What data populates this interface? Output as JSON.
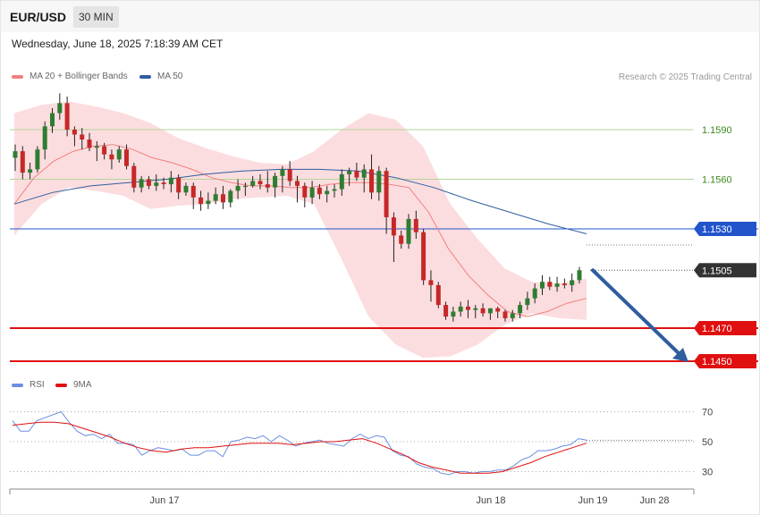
{
  "header": {
    "symbol": "EUR/USD",
    "timeframe": "30 MIN",
    "datetime": "Wednesday, June 18, 2025 7:18:39 AM CET"
  },
  "legend": {
    "ma20_label": "MA 20 + Bollinger Bands",
    "ma50_label": "MA 50",
    "rsi_label": "RSI",
    "rsi_ma_label": "9MA",
    "credit": "Research © 2025 Trading Central"
  },
  "colors": {
    "ma20": "#f08080",
    "ma50": "#2f5d9e",
    "band_fill": "#fcd9dc",
    "bull": "#2e7d32",
    "bear": "#c62828",
    "level_green": "#b3d49a",
    "level_blue": "#2255cc",
    "level_red": "#e01010",
    "rsi": "#6b8ee0",
    "rsi_ma": "#e01010",
    "arrow": "#2f5d9e"
  },
  "chart_data": [
    {
      "type": "candlestick",
      "title": "EUR/USD",
      "timeframe": "30 MIN",
      "y_range": [
        1.144,
        1.161
      ],
      "x_labels": [
        "Jun 17",
        "Jun 18",
        "Jun 19",
        "Jun 28"
      ],
      "levels": [
        {
          "value": 1.159,
          "label": "1.1590",
          "kind": "resistance"
        },
        {
          "value": 1.156,
          "label": "1.1560",
          "kind": "resistance"
        },
        {
          "value": 1.153,
          "label": "1.1530",
          "kind": "pivot"
        },
        {
          "value": 1.1505,
          "label": "1.1505",
          "kind": "last"
        },
        {
          "value": 1.147,
          "label": "1.1470",
          "kind": "support"
        },
        {
          "value": 1.145,
          "label": "1.1450",
          "kind": "support"
        }
      ],
      "candles": [
        [
          1.1573,
          1.1581,
          1.1565,
          1.1577
        ],
        [
          1.1577,
          1.158,
          1.156,
          1.1564
        ],
        [
          1.1564,
          1.157,
          1.156,
          1.1566
        ],
        [
          1.1566,
          1.158,
          1.1564,
          1.1578
        ],
        [
          1.1578,
          1.1595,
          1.1572,
          1.1592
        ],
        [
          1.1592,
          1.1603,
          1.1588,
          1.16
        ],
        [
          1.16,
          1.1612,
          1.1596,
          1.1606
        ],
        [
          1.1606,
          1.161,
          1.1586,
          1.159
        ],
        [
          1.159,
          1.1592,
          1.158,
          1.1587
        ],
        [
          1.1587,
          1.1591,
          1.1578,
          1.1584
        ],
        [
          1.1584,
          1.1588,
          1.1577,
          1.1579
        ],
        [
          1.1579,
          1.1583,
          1.1571,
          1.158
        ],
        [
          1.158,
          1.1582,
          1.1572,
          1.1575
        ],
        [
          1.1575,
          1.1578,
          1.1566,
          1.1572
        ],
        [
          1.1572,
          1.158,
          1.157,
          1.1578
        ],
        [
          1.1578,
          1.1581,
          1.1566,
          1.1568
        ],
        [
          1.1568,
          1.157,
          1.1552,
          1.1555
        ],
        [
          1.1555,
          1.1562,
          1.1552,
          1.156
        ],
        [
          1.156,
          1.1562,
          1.1554,
          1.1556
        ],
        [
          1.1556,
          1.1563,
          1.1553,
          1.1558
        ],
        [
          1.1558,
          1.1561,
          1.1554,
          1.1557
        ],
        [
          1.1557,
          1.1565,
          1.1552,
          1.1561
        ],
        [
          1.1561,
          1.1563,
          1.1548,
          1.1552
        ],
        [
          1.1552,
          1.1558,
          1.155,
          1.1556
        ],
        [
          1.1556,
          1.1558,
          1.1542,
          1.1549
        ],
        [
          1.1549,
          1.1553,
          1.1541,
          1.1545
        ],
        [
          1.1545,
          1.1552,
          1.1542,
          1.1547
        ],
        [
          1.1547,
          1.1555,
          1.1545,
          1.1551
        ],
        [
          1.1551,
          1.1556,
          1.1542,
          1.1546
        ],
        [
          1.1546,
          1.1554,
          1.1543,
          1.1553
        ],
        [
          1.1553,
          1.156,
          1.1548,
          1.1556
        ],
        [
          1.1556,
          1.1558,
          1.155,
          1.1556
        ],
        [
          1.1556,
          1.1562,
          1.1555,
          1.1559
        ],
        [
          1.1559,
          1.1563,
          1.1554,
          1.1557
        ],
        [
          1.1557,
          1.1565,
          1.1552,
          1.1555
        ],
        [
          1.1555,
          1.1564,
          1.1549,
          1.1562
        ],
        [
          1.1562,
          1.1568,
          1.1552,
          1.1566
        ],
        [
          1.1566,
          1.1571,
          1.1556,
          1.1559
        ],
        [
          1.1559,
          1.1562,
          1.1546,
          1.1556
        ],
        [
          1.1556,
          1.1558,
          1.1543,
          1.1549
        ],
        [
          1.1549,
          1.1559,
          1.1545,
          1.1555
        ],
        [
          1.1555,
          1.1557,
          1.1548,
          1.1551
        ],
        [
          1.1551,
          1.1556,
          1.1546,
          1.1553
        ],
        [
          1.1553,
          1.1557,
          1.1549,
          1.1554
        ],
        [
          1.1554,
          1.1566,
          1.155,
          1.1563
        ],
        [
          1.1563,
          1.1567,
          1.1556,
          1.1565
        ],
        [
          1.1565,
          1.157,
          1.1559,
          1.1561
        ],
        [
          1.1561,
          1.1569,
          1.1552,
          1.1566
        ],
        [
          1.1566,
          1.1575,
          1.1548,
          1.1552
        ],
        [
          1.1552,
          1.1568,
          1.1547,
          1.1565
        ],
        [
          1.1565,
          1.1567,
          1.1527,
          1.1537
        ],
        [
          1.1537,
          1.154,
          1.151,
          1.1526
        ],
        [
          1.1526,
          1.1529,
          1.1518,
          1.1521
        ],
        [
          1.1521,
          1.1539,
          1.1518,
          1.1536
        ],
        [
          1.1536,
          1.1541,
          1.1524,
          1.1528
        ],
        [
          1.1528,
          1.153,
          1.1496,
          1.1499
        ],
        [
          1.1499,
          1.1505,
          1.1486,
          1.1496
        ],
        [
          1.1496,
          1.1498,
          1.1482,
          1.1484
        ],
        [
          1.1484,
          1.1486,
          1.1475,
          1.1477
        ],
        [
          1.1477,
          1.1483,
          1.1474,
          1.148
        ],
        [
          1.148,
          1.1486,
          1.1477,
          1.1483
        ],
        [
          1.1483,
          1.1487,
          1.1476,
          1.1481
        ],
        [
          1.1481,
          1.1484,
          1.1476,
          1.1482
        ],
        [
          1.1482,
          1.1485,
          1.1477,
          1.1479
        ],
        [
          1.1479,
          1.1482,
          1.1475,
          1.1482
        ],
        [
          1.1482,
          1.1483,
          1.1476,
          1.148
        ],
        [
          1.148,
          1.1481,
          1.1474,
          1.1476
        ],
        [
          1.1476,
          1.1481,
          1.1474,
          1.1479
        ],
        [
          1.1479,
          1.1486,
          1.1476,
          1.1484
        ],
        [
          1.1484,
          1.1492,
          1.1481,
          1.1488
        ],
        [
          1.1488,
          1.1497,
          1.1485,
          1.1494
        ],
        [
          1.1494,
          1.1502,
          1.149,
          1.1498
        ],
        [
          1.1498,
          1.1501,
          1.1493,
          1.1495
        ],
        [
          1.1495,
          1.1501,
          1.1492,
          1.1497
        ],
        [
          1.1497,
          1.15,
          1.1494,
          1.1496
        ],
        [
          1.1496,
          1.1503,
          1.1492,
          1.1499
        ],
        [
          1.1499,
          1.1507,
          1.1497,
          1.1505
        ]
      ],
      "ma20": [
        1.1545,
        1.1561,
        1.1571,
        1.1577,
        1.158,
        1.1581,
        1.1578,
        1.1573,
        1.157,
        1.1566,
        1.1561,
        1.1558,
        1.1556,
        1.1556,
        1.1555,
        1.1555,
        1.1557,
        1.1558,
        1.1558,
        1.1557,
        1.1555,
        1.154,
        1.1518,
        1.1502,
        1.149,
        1.148,
        1.1477,
        1.148,
        1.1485,
        1.1488
      ],
      "ma50": [
        1.1545,
        1.1552,
        1.1556,
        1.1558,
        1.156,
        1.1563,
        1.1565,
        1.1566,
        1.1566,
        1.1565,
        1.1561,
        1.1555,
        1.1547,
        1.154,
        1.1533,
        1.1527
      ],
      "bb_upper": [
        1.16,
        1.1605,
        1.1607,
        1.1604,
        1.16,
        1.1594,
        1.1585,
        1.1579,
        1.1574,
        1.157,
        1.1569,
        1.1577,
        1.159,
        1.16,
        1.1596,
        1.158,
        1.1545,
        1.1524,
        1.1506,
        1.1498,
        1.1497,
        1.15
      ],
      "bb_lower": [
        1.1526,
        1.1545,
        1.1555,
        1.1553,
        1.155,
        1.1542,
        1.1544,
        1.1545,
        1.1548,
        1.1549,
        1.155,
        1.1545,
        1.1512,
        1.1477,
        1.146,
        1.1452,
        1.1453,
        1.146,
        1.1472,
        1.1479,
        1.1476,
        1.1475
      ],
      "projection": {
        "from": 1.1505,
        "to": 1.145
      }
    },
    {
      "type": "line",
      "title": "RSI",
      "y_ticks": [
        30,
        50,
        70
      ],
      "series": [
        {
          "name": "RSI",
          "values": [
            64,
            57,
            57,
            64,
            66,
            68,
            70,
            63,
            57,
            54,
            55,
            52,
            55,
            49,
            49,
            48,
            41,
            44,
            46,
            45,
            44,
            45,
            41,
            41,
            44,
            44,
            40,
            50,
            51,
            53,
            52,
            54,
            50,
            54,
            51,
            47,
            49,
            50,
            51,
            49,
            48,
            47,
            52,
            55,
            52,
            54,
            53,
            44,
            41,
            40,
            35,
            33,
            32,
            29,
            28,
            30,
            30,
            29,
            30,
            30,
            31,
            31,
            34,
            38,
            40,
            44,
            44,
            45,
            47,
            48,
            52,
            51
          ]
        },
        {
          "name": "9MA",
          "values": [
            61,
            62,
            63,
            63,
            62,
            59,
            56,
            53,
            49,
            46,
            44,
            43,
            45,
            46,
            46,
            47,
            48,
            49,
            49,
            49,
            48,
            49,
            50,
            50,
            51,
            52,
            49,
            45,
            41,
            36,
            33,
            31,
            29,
            29,
            29,
            30,
            33,
            36,
            40,
            43,
            46,
            49
          ]
        }
      ]
    }
  ]
}
